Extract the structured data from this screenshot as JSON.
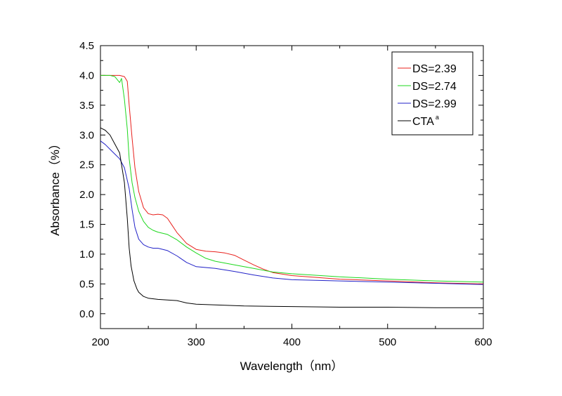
{
  "chart_data": {
    "type": "line",
    "xlabel": "Wavelength（nm）",
    "ylabel": "Absorbance（%）",
    "xlim": [
      200,
      600
    ],
    "ylim": [
      -0.25,
      4.5
    ],
    "xticks": [
      "200",
      "300",
      "400",
      "500",
      "600"
    ],
    "yticks": [
      "0.0",
      "0.5",
      "1.0",
      "1.5",
      "2.0",
      "2.5",
      "3.0",
      "3.5",
      "4.0",
      "4.5"
    ],
    "grid": false,
    "legend_position": "top-right",
    "series": [
      {
        "name": "DS=2.39",
        "color": "#e8201c",
        "x": [
          200,
          210,
          220,
          225,
          228,
          230,
          233,
          236,
          240,
          245,
          250,
          255,
          260,
          265,
          270,
          275,
          280,
          290,
          300,
          310,
          320,
          330,
          340,
          350,
          360,
          370,
          380,
          400,
          450,
          500,
          550,
          600
        ],
        "y": [
          4.0,
          4.0,
          4.0,
          3.98,
          3.9,
          3.5,
          2.95,
          2.45,
          2.05,
          1.78,
          1.68,
          1.66,
          1.67,
          1.66,
          1.6,
          1.48,
          1.36,
          1.18,
          1.08,
          1.05,
          1.04,
          1.02,
          0.98,
          0.9,
          0.82,
          0.75,
          0.69,
          0.64,
          0.58,
          0.55,
          0.52,
          0.5
        ]
      },
      {
        "name": "DS=2.74",
        "color": "#1ed81e",
        "x": [
          200,
          210,
          215,
          220,
          222,
          225,
          228,
          230,
          233,
          236,
          240,
          245,
          250,
          255,
          260,
          270,
          280,
          290,
          300,
          310,
          320,
          340,
          360,
          380,
          400,
          450,
          500,
          550,
          600
        ],
        "y": [
          4.0,
          4.0,
          3.98,
          3.88,
          3.95,
          3.6,
          3.1,
          2.6,
          2.2,
          1.95,
          1.72,
          1.55,
          1.45,
          1.4,
          1.37,
          1.33,
          1.24,
          1.12,
          1.02,
          0.93,
          0.88,
          0.82,
          0.76,
          0.7,
          0.67,
          0.62,
          0.58,
          0.55,
          0.53
        ]
      },
      {
        "name": "DS=2.99",
        "color": "#2222c8",
        "x": [
          200,
          205,
          210,
          215,
          220,
          225,
          230,
          233,
          236,
          240,
          245,
          250,
          255,
          260,
          270,
          280,
          290,
          300,
          320,
          340,
          360,
          380,
          400,
          450,
          500,
          550,
          600
        ],
        "y": [
          2.9,
          2.84,
          2.76,
          2.68,
          2.6,
          2.45,
          2.1,
          1.75,
          1.45,
          1.25,
          1.16,
          1.12,
          1.1,
          1.1,
          1.06,
          0.97,
          0.86,
          0.79,
          0.76,
          0.71,
          0.65,
          0.6,
          0.57,
          0.55,
          0.53,
          0.51,
          0.49
        ]
      },
      {
        "name": "CTA",
        "name_superscript": "a",
        "color": "#000000",
        "x": [
          200,
          205,
          210,
          215,
          220,
          225,
          228,
          230,
          232,
          235,
          238,
          240,
          245,
          250,
          260,
          270,
          280,
          290,
          300,
          350,
          400,
          450,
          500,
          550,
          600
        ],
        "y": [
          3.12,
          3.08,
          3.0,
          2.85,
          2.7,
          2.2,
          1.6,
          1.1,
          0.8,
          0.55,
          0.42,
          0.36,
          0.29,
          0.26,
          0.24,
          0.23,
          0.22,
          0.18,
          0.16,
          0.13,
          0.12,
          0.11,
          0.11,
          0.1,
          0.1
        ]
      }
    ]
  }
}
